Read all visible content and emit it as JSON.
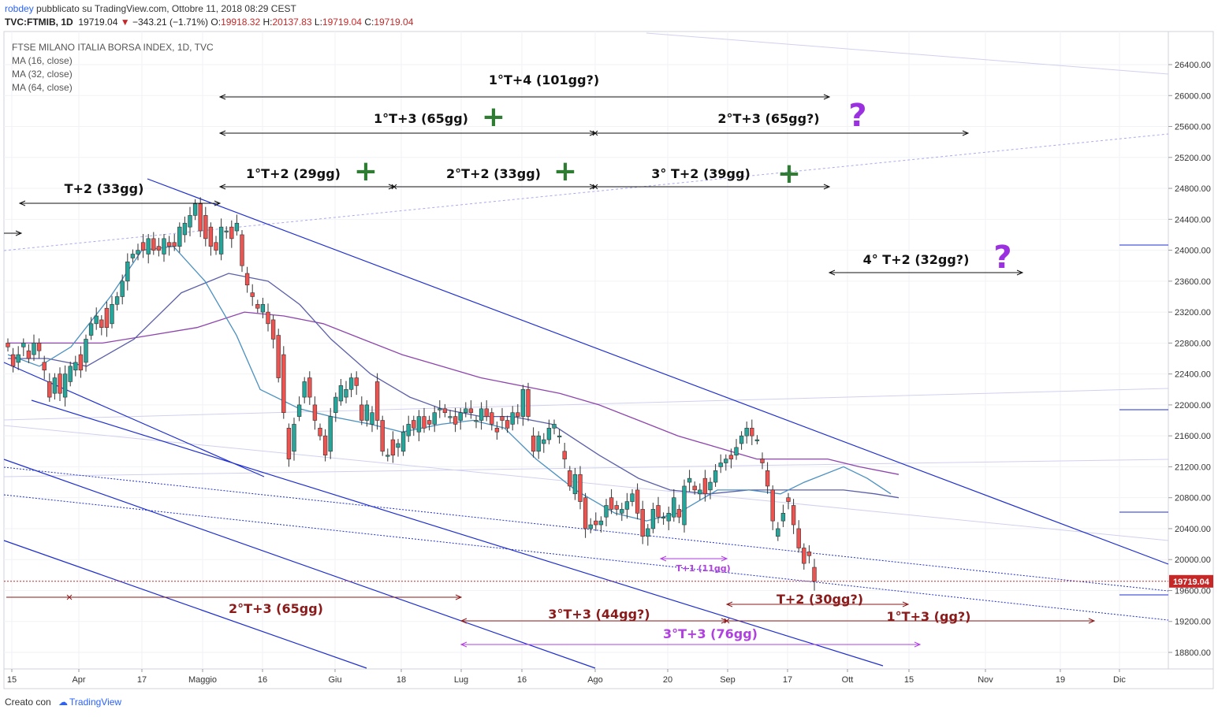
{
  "header": {
    "user": "robdey",
    "published": "pubblicato su TradingView.com, Ottobre 11, 2018 08:29 CEST",
    "symbol": "TVC:FTMIB, 1D",
    "last": "19719.04",
    "change": "−343.21 (−1.71%)",
    "open_label": "O:",
    "open": "19918.32",
    "high_label": "H:",
    "high": "20137.83",
    "low_label": "L:",
    "low": "19719.04",
    "close_label": "C:",
    "close": "19719.04"
  },
  "legend": {
    "title": "FTSE MILANO ITALIA BORSA INDEX, 1D, TVC",
    "ma1": "MA (16, close)",
    "ma2": "MA (32, close)",
    "ma3": "MA (64, close)"
  },
  "footer": {
    "created_with": "Creato con",
    "brand": "TradingView"
  },
  "colors": {
    "up": "#26a69a",
    "down": "#ef5350",
    "channel": "#1f2fd0",
    "ma16": "#4a90c0",
    "ma32": "#5b5fa8",
    "ma64": "#8e44ad",
    "annot_black": "#111111",
    "annot_red": "#8b1a1a",
    "annot_purple": "#b040e0",
    "plus_green": "#2e7d32",
    "question_purple": "#9b30e0"
  },
  "chart_data": {
    "type": "candlestick",
    "ylim": [
      18500,
      26700
    ],
    "y_ticks": [
      "26400.00",
      "26000.00",
      "25600.00",
      "25200.00",
      "24800.00",
      "24400.00",
      "24000.00",
      "23600.00",
      "23200.00",
      "22800.00",
      "22400.00",
      "22000.00",
      "21600.00",
      "21200.00",
      "20800.00",
      "20400.00",
      "20000.00",
      "19600.00",
      "19200.00",
      "18800.00"
    ],
    "x_ticks": [
      "15",
      "Apr",
      "17",
      "Maggio",
      "16",
      "Giu",
      "18",
      "Lug",
      "16",
      "Ago",
      "20",
      "Sep",
      "17",
      "Ott",
      "15",
      "Nov",
      "19",
      "Dic"
    ],
    "last_price_label": "19719.04",
    "candles": [
      [
        22800,
        22750
      ],
      [
        22650,
        22500
      ],
      [
        22550,
        22650
      ],
      [
        22750,
        22800
      ],
      [
        22700,
        22600
      ],
      [
        22650,
        22800
      ],
      [
        22800,
        22700
      ],
      [
        22550,
        22450
      ],
      [
        22300,
        22100
      ],
      [
        22150,
        22350
      ],
      [
        22400,
        22150
      ],
      [
        22100,
        22400
      ],
      [
        22300,
        22500
      ],
      [
        22450,
        22550
      ],
      [
        22650,
        22450
      ],
      [
        22550,
        22850
      ],
      [
        22900,
        23050
      ],
      [
        23050,
        23150
      ],
      [
        23100,
        23000
      ],
      [
        23250,
        23000
      ],
      [
        23050,
        23300
      ],
      [
        23300,
        23400
      ],
      [
        23400,
        23600
      ],
      [
        23600,
        23850
      ],
      [
        23900,
        23950
      ],
      [
        23950,
        24000
      ],
      [
        24100,
        24000
      ],
      [
        23950,
        24150
      ],
      [
        24150,
        24000
      ],
      [
        24050,
        24000
      ],
      [
        23950,
        24150
      ],
      [
        24100,
        24050
      ],
      [
        24100,
        24050
      ],
      [
        24050,
        24300
      ],
      [
        24200,
        24350
      ],
      [
        24300,
        24450
      ],
      [
        24450,
        24600
      ],
      [
        24600,
        24250
      ],
      [
        24450,
        24150
      ],
      [
        24300,
        24050
      ],
      [
        24100,
        24000
      ],
      [
        23950,
        24300
      ],
      [
        24250,
        24250
      ],
      [
        24300,
        24150
      ],
      [
        24250,
        24350
      ],
      [
        24200,
        23800
      ],
      [
        23700,
        23550
      ],
      [
        23450,
        23400
      ],
      [
        23300,
        23250
      ],
      [
        23200,
        23300
      ],
      [
        23200,
        23050
      ],
      [
        23100,
        22850
      ],
      [
        22900,
        22350
      ],
      [
        22650,
        21900
      ],
      [
        21700,
        21300
      ],
      [
        21400,
        21750
      ],
      [
        21850,
        22000
      ],
      [
        22100,
        22300
      ],
      [
        22350,
        22100
      ],
      [
        22000,
        21800
      ],
      [
        21700,
        21600
      ],
      [
        21600,
        21350
      ],
      [
        21400,
        21850
      ],
      [
        21900,
        22100
      ],
      [
        22050,
        22250
      ],
      [
        22100,
        22200
      ],
      [
        22200,
        22350
      ],
      [
        22350,
        22250
      ],
      [
        22000,
        21800
      ],
      [
        21800,
        22000
      ],
      [
        21750,
        21900
      ],
      [
        22300,
        21800
      ],
      [
        21800,
        21400
      ],
      [
        21350,
        21350
      ],
      [
        21550,
        21350
      ],
      [
        21450,
        21500
      ],
      [
        21400,
        21650
      ],
      [
        21600,
        21750
      ],
      [
        21800,
        21700
      ],
      [
        21650,
        21850
      ],
      [
        21850,
        21700
      ],
      [
        21800,
        21750
      ],
      [
        21750,
        21900
      ],
      [
        21950,
        21950
      ],
      [
        21950,
        21900
      ],
      [
        21850,
        21850
      ],
      [
        21850,
        21750
      ],
      [
        21800,
        21900
      ],
      [
        21900,
        21950
      ],
      [
        21950,
        21900
      ],
      [
        21800,
        21800
      ],
      [
        21800,
        21950
      ],
      [
        21950,
        21850
      ],
      [
        21900,
        21750
      ],
      [
        21700,
        21650
      ],
      [
        21850,
        21800
      ],
      [
        21800,
        21700
      ],
      [
        21750,
        21900
      ],
      [
        21900,
        21850
      ],
      [
        21850,
        22200
      ],
      [
        22200,
        21850
      ],
      [
        21600,
        21400
      ],
      [
        21400,
        21600
      ],
      [
        21500,
        21550
      ],
      [
        21550,
        21700
      ],
      [
        21700,
        21750
      ],
      [
        21600,
        21600
      ],
      [
        21400,
        21300
      ],
      [
        21150,
        20950
      ],
      [
        20850,
        21100
      ],
      [
        21100,
        20750
      ],
      [
        20800,
        20400
      ],
      [
        20400,
        20450
      ],
      [
        20500,
        20450
      ],
      [
        20450,
        20500
      ],
      [
        20550,
        20700
      ],
      [
        20800,
        20650
      ],
      [
        20700,
        20650
      ],
      [
        20600,
        20650
      ],
      [
        20650,
        20750
      ],
      [
        20750,
        20850
      ],
      [
        20900,
        20600
      ],
      [
        20650,
        20300
      ],
      [
        20300,
        20400
      ],
      [
        20400,
        20650
      ],
      [
        20700,
        20550
      ],
      [
        20550,
        20550
      ],
      [
        20500,
        20600
      ],
      [
        20550,
        20800
      ],
      [
        20650,
        20550
      ],
      [
        20450,
        20950
      ],
      [
        21000,
        21050
      ],
      [
        20950,
        20900
      ],
      [
        20850,
        20900
      ],
      [
        21050,
        20850
      ],
      [
        20900,
        21000
      ],
      [
        21000,
        21150
      ],
      [
        21200,
        21250
      ],
      [
        21250,
        21300
      ],
      [
        21350,
        21300
      ],
      [
        21350,
        21450
      ],
      [
        21500,
        21600
      ],
      [
        21600,
        21700
      ],
      [
        21700,
        21600
      ],
      [
        21550,
        21550
      ],
      [
        21300,
        21250
      ],
      [
        21150,
        20950
      ],
      [
        20900,
        20500
      ],
      [
        20300,
        20400
      ],
      [
        20500,
        20600
      ],
      [
        20800,
        20750
      ],
      [
        20700,
        20450
      ],
      [
        20400,
        20150
      ],
      [
        20150,
        19950
      ],
      [
        20100,
        20050
      ],
      [
        19900,
        19719.04
      ]
    ],
    "ma16": [
      [
        0,
        22650
      ],
      [
        20,
        22500
      ],
      [
        40,
        22750
      ],
      [
        65,
        23400
      ],
      [
        85,
        24000
      ],
      [
        105,
        24050
      ],
      [
        125,
        23600
      ],
      [
        145,
        22900
      ],
      [
        160,
        22200
      ],
      [
        185,
        21950
      ],
      [
        205,
        21850
      ],
      [
        230,
        21750
      ],
      [
        250,
        21650
      ],
      [
        275,
        21750
      ],
      [
        295,
        21800
      ],
      [
        315,
        21700
      ],
      [
        335,
        21300
      ],
      [
        360,
        20900
      ],
      [
        385,
        20600
      ],
      [
        405,
        20500
      ],
      [
        425,
        20600
      ],
      [
        450,
        20900
      ],
      [
        470,
        20900
      ],
      [
        490,
        20850
      ],
      [
        505,
        21000
      ],
      [
        530,
        21200
      ],
      [
        545,
        21050
      ],
      [
        560,
        20850
      ]
    ],
    "ma32": [
      [
        0,
        22600
      ],
      [
        25,
        22600
      ],
      [
        50,
        22500
      ],
      [
        80,
        22850
      ],
      [
        110,
        23450
      ],
      [
        140,
        23700
      ],
      [
        165,
        23600
      ],
      [
        185,
        23300
      ],
      [
        205,
        22850
      ],
      [
        230,
        22400
      ],
      [
        255,
        22100
      ],
      [
        275,
        21950
      ],
      [
        300,
        21850
      ],
      [
        320,
        21850
      ],
      [
        345,
        21750
      ],
      [
        375,
        21350
      ],
      [
        400,
        21050
      ],
      [
        420,
        20900
      ],
      [
        445,
        20850
      ],
      [
        470,
        20900
      ],
      [
        490,
        20900
      ],
      [
        510,
        20900
      ],
      [
        530,
        20900
      ],
      [
        550,
        20850
      ],
      [
        565,
        20800
      ]
    ],
    "ma64": [
      [
        0,
        22800
      ],
      [
        30,
        22800
      ],
      [
        60,
        22800
      ],
      [
        90,
        22900
      ],
      [
        120,
        23000
      ],
      [
        150,
        23200
      ],
      [
        175,
        23150
      ],
      [
        200,
        23050
      ],
      [
        225,
        22850
      ],
      [
        250,
        22650
      ],
      [
        275,
        22500
      ],
      [
        300,
        22350
      ],
      [
        325,
        22250
      ],
      [
        350,
        22150
      ],
      [
        375,
        22000
      ],
      [
        400,
        21800
      ],
      [
        425,
        21600
      ],
      [
        450,
        21450
      ],
      [
        475,
        21300
      ],
      [
        500,
        21300
      ],
      [
        520,
        21300
      ],
      [
        540,
        21200
      ],
      [
        565,
        21100
      ]
    ],
    "annotations": {
      "t2_33": "T+2 (33gg)",
      "t1t4": "1°T+4 (101gg?)",
      "t1t3": "1°T+3 (65gg)",
      "t2t3": "2°T+3 (65gg?)",
      "t1t2": "1°T+2 (29gg)",
      "t2t2": "2°T+2 (33gg)",
      "t3t2": "3° T+2 (39gg)",
      "t4t2": "4° T+2 (32gg?)",
      "red_2t3": "2°T+3 (65gg)",
      "red_3t3": "3°T+3 (44gg?)",
      "red_t2": "T+2 (30gg?)",
      "red_1t3": "1°T+3 (gg?)",
      "purple_3t3": "3°T+3 (76gg)",
      "purple_t1": "T+1 (11gg)",
      "plus": "+",
      "question": "?"
    }
  }
}
